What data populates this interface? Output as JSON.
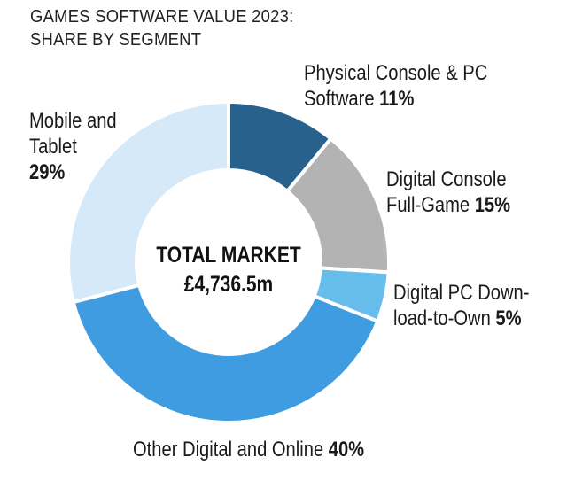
{
  "chart_data": {
    "type": "pie",
    "title_lines": [
      "GAMES SOFTWARE VALUE 2023:",
      "SHARE BY SEGMENT"
    ],
    "center_label": [
      "TOTAL MARKET",
      "£4,736.5m"
    ],
    "slices": [
      {
        "name_lines": [
          "Physical Console & PC",
          "Software"
        ],
        "value": 11,
        "pct_label": "11%",
        "color": "#27618c"
      },
      {
        "name_lines": [
          "Digital Console",
          "Full-Game"
        ],
        "value": 15,
        "pct_label": "15%",
        "color": "#b3b3b3"
      },
      {
        "name_lines": [
          "Digital PC Down-",
          "load-to-Own"
        ],
        "value": 5,
        "pct_label": "5%",
        "color": "#67bdeb"
      },
      {
        "name_lines": [
          "Other Digital and Online"
        ],
        "value": 40,
        "pct_label": "40%",
        "color": "#3f9ce0"
      },
      {
        "name_lines": [
          "Mobile and",
          "Tablet"
        ],
        "value": 29,
        "pct_label": "29%",
        "color": "#d6e9f9"
      }
    ]
  }
}
